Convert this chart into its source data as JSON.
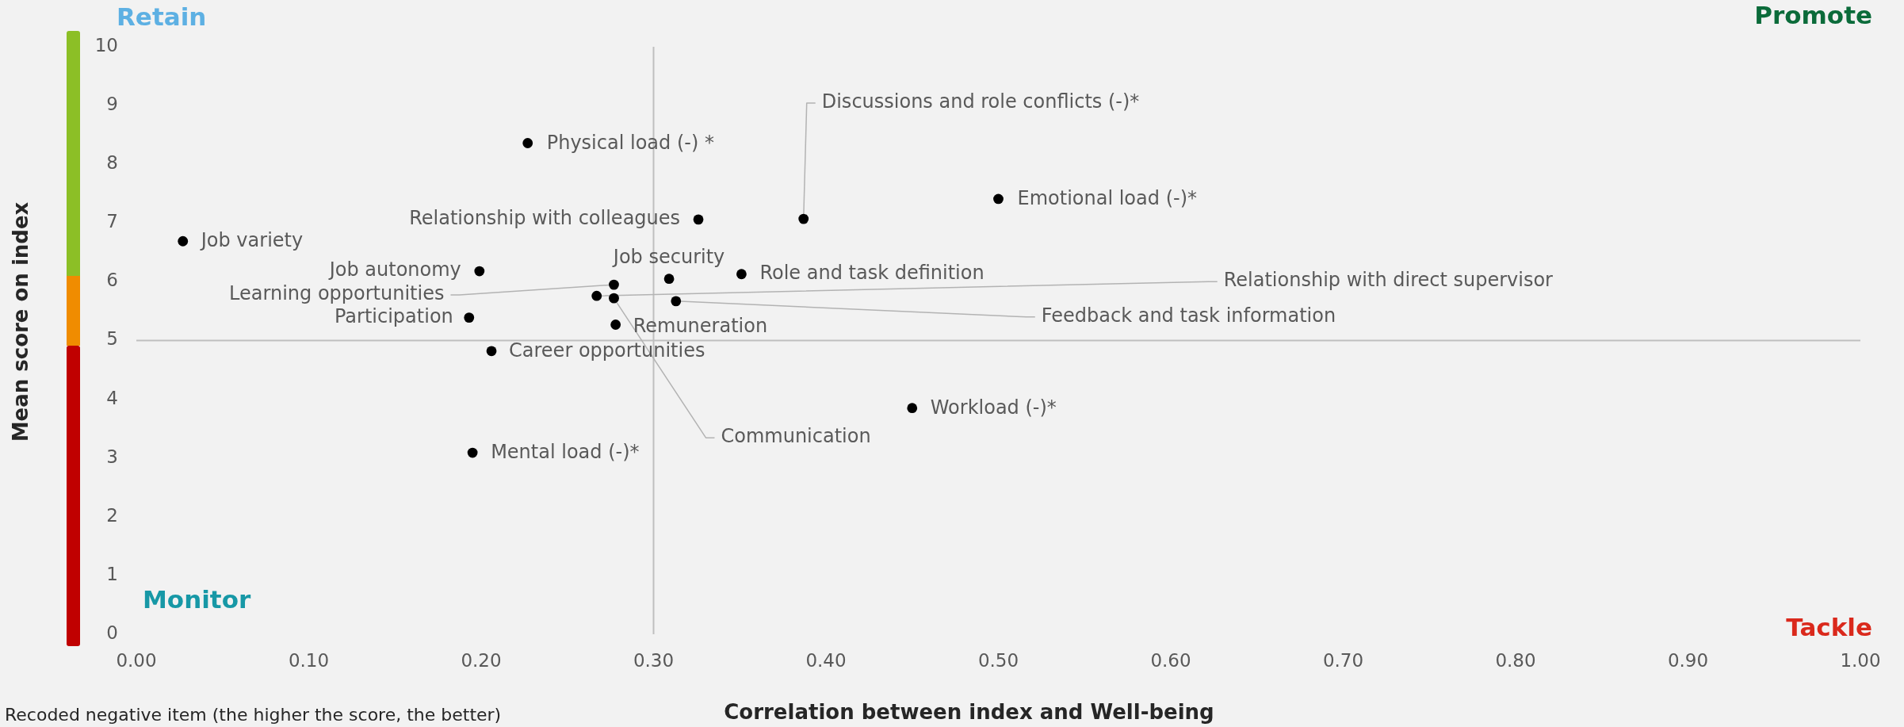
{
  "chart_data": {
    "type": "scatter",
    "xlabel": "Correlation between index and Well-being",
    "ylabel": "Mean score on index",
    "annotations": [
      "Retain",
      "Promote",
      "Monitor",
      "Tackle",
      "Recoded negative item (the higher the score, the better)"
    ],
    "xlim": [
      0,
      1
    ],
    "xticks": [
      {
        "value": 0,
        "label": "0.00"
      },
      {
        "value": 0.1,
        "label": "0.10"
      },
      {
        "value": 0.2,
        "label": "0.20"
      },
      {
        "value": 0.3,
        "label": "0.30"
      },
      {
        "value": 0.4,
        "label": "0.40"
      },
      {
        "value": 0.5,
        "label": "0.50"
      },
      {
        "value": 0.6,
        "label": "0.60"
      },
      {
        "value": 0.7,
        "label": "0.70"
      },
      {
        "value": 0.8,
        "label": "0.80"
      },
      {
        "value": 0.9,
        "label": "0.90"
      },
      {
        "value": 1,
        "label": "1.00"
      }
    ],
    "ylim": [
      0,
      10
    ],
    "yticks": [
      0,
      1,
      2,
      3,
      4,
      5,
      6,
      7,
      8,
      9,
      10
    ],
    "grid": false,
    "legend": false,
    "marker": "circle",
    "ref_lines": [
      {
        "axis": "x",
        "value": 0.3,
        "color": "#bfbfbf"
      },
      {
        "axis": "y",
        "value": 5,
        "color": "#bfbfbf"
      }
    ],
    "series": [
      {
        "name": "Job variety",
        "color": "#000000",
        "x": [
          0.027
        ],
        "values": [
          6.69
        ]
      },
      {
        "name": "Physical load (-) *",
        "color": "#000000",
        "x": [
          0.227
        ],
        "values": [
          8.36
        ]
      },
      {
        "name": "Relationship with colleagues",
        "color": "#000000",
        "x": [
          0.326
        ],
        "values": [
          7.06
        ]
      },
      {
        "name": "Discussions and role conflicts (-)*",
        "color": "#000000",
        "x": [
          0.387
        ],
        "values": [
          7.07
        ]
      },
      {
        "name": "Emotional load (-)*",
        "color": "#000000",
        "x": [
          0.5
        ],
        "values": [
          7.41
        ]
      },
      {
        "name": "Role and task definition",
        "color": "#000000",
        "x": [
          0.351
        ],
        "values": [
          6.13
        ]
      },
      {
        "name": "Job autonomy",
        "color": "#000000",
        "x": [
          0.199
        ],
        "values": [
          6.18
        ]
      },
      {
        "name": "Job security",
        "color": "#000000",
        "x": [
          0.309
        ],
        "values": [
          6.05
        ]
      },
      {
        "name": "Learning opportunities",
        "color": "#000000",
        "x": [
          0.277
        ],
        "values": [
          5.95
        ]
      },
      {
        "name": "Relationship with direct supervisor",
        "color": "#000000",
        "x": [
          0.267
        ],
        "values": [
          5.76
        ]
      },
      {
        "name": "Communication",
        "color": "#000000",
        "x": [
          0.277
        ],
        "values": [
          5.72
        ]
      },
      {
        "name": "Feedback and task information",
        "color": "#000000",
        "x": [
          0.313
        ],
        "values": [
          5.67
        ]
      },
      {
        "name": "Participation",
        "color": "#000000",
        "x": [
          0.193
        ],
        "values": [
          5.39
        ]
      },
      {
        "name": "Remuneration",
        "color": "#000000",
        "x": [
          0.278
        ],
        "values": [
          5.27
        ]
      },
      {
        "name": "Career opportunities",
        "color": "#000000",
        "x": [
          0.206
        ],
        "values": [
          4.82
        ]
      },
      {
        "name": "Workload (-)*",
        "color": "#000000",
        "x": [
          0.45
        ],
        "values": [
          3.85
        ]
      },
      {
        "name": "Mental load (-)*",
        "color": "#000000",
        "x": [
          0.195
        ],
        "values": [
          3.09
        ]
      }
    ]
  }
}
